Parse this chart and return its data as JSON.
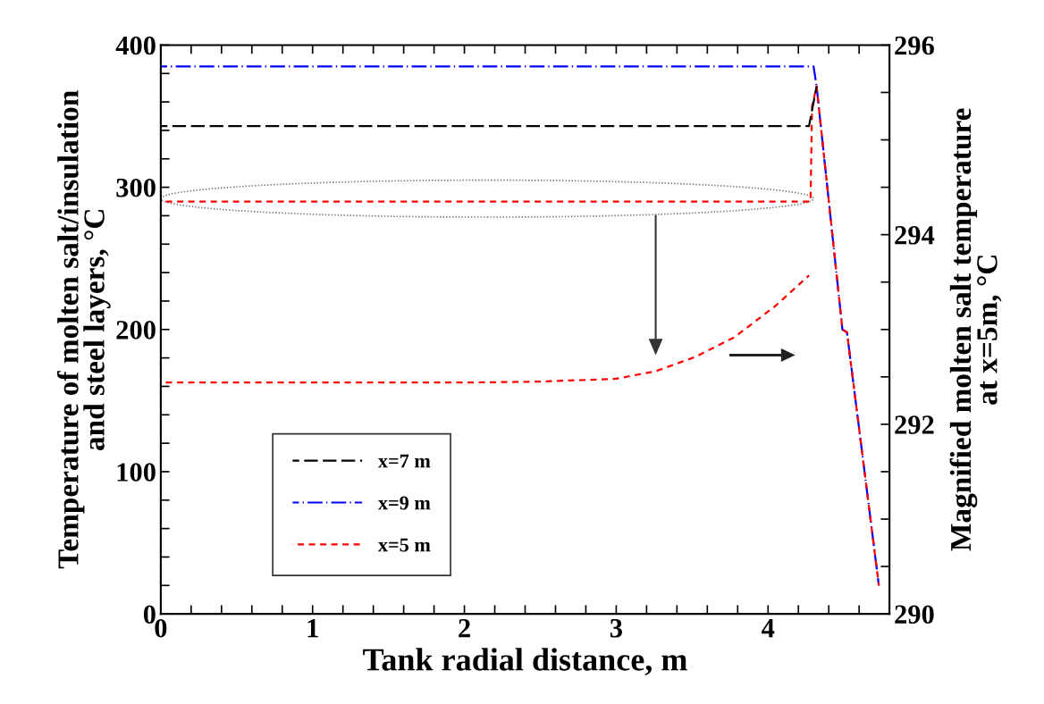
{
  "chart_data": {
    "type": "line",
    "xlabel": "Tank radial distance, m",
    "ylabel": "Temperature of molten salt/insulation\nand steel layers, °C",
    "y2label": "Magnified molten salt temperature\nat x=5m, °C",
    "xlim": [
      0,
      4.8
    ],
    "ylim": [
      0,
      400
    ],
    "y2lim": [
      290,
      296
    ],
    "xticks": [
      0,
      {
        "value": 0.2,
        "label": null
      },
      {
        "value": 0.4,
        "label": null
      },
      {
        "value": 0.6,
        "label": null
      },
      {
        "value": 0.8,
        "label": null
      },
      1,
      {
        "value": 1.2,
        "label": null
      },
      {
        "value": 1.4,
        "label": null
      },
      {
        "value": 1.6,
        "label": null
      },
      {
        "value": 1.8,
        "label": null
      },
      2,
      {
        "value": 2.2,
        "label": null
      },
      {
        "value": 2.4,
        "label": null
      },
      {
        "value": 2.6,
        "label": null
      },
      {
        "value": 2.8,
        "label": null
      },
      3,
      {
        "value": 3.2,
        "label": null
      },
      {
        "value": 3.4,
        "label": null
      },
      {
        "value": 3.6,
        "label": null
      },
      {
        "value": 3.8,
        "label": null
      },
      4,
      {
        "value": 4.2,
        "label": null
      },
      {
        "value": 4.4,
        "label": null
      },
      {
        "value": 4.6,
        "label": null
      }
    ],
    "yticks": [
      0,
      {
        "value": 20,
        "label": null
      },
      {
        "value": 40,
        "label": null
      },
      {
        "value": 60,
        "label": null
      },
      {
        "value": 80,
        "label": null
      },
      100,
      {
        "value": 120,
        "label": null
      },
      {
        "value": 140,
        "label": null
      },
      {
        "value": 160,
        "label": null
      },
      {
        "value": 180,
        "label": null
      },
      200,
      {
        "value": 220,
        "label": null
      },
      {
        "value": 240,
        "label": null
      },
      {
        "value": 260,
        "label": null
      },
      {
        "value": 280,
        "label": null
      },
      300,
      {
        "value": 320,
        "label": null
      },
      {
        "value": 340,
        "label": null
      },
      {
        "value": 360,
        "label": null
      },
      {
        "value": 380,
        "label": null
      },
      400
    ],
    "y2ticks": [
      290,
      {
        "value": 290.5,
        "label": null
      },
      {
        "value": 291,
        "label": null
      },
      {
        "value": 291.5,
        "label": null
      },
      292,
      {
        "value": 292.5,
        "label": null
      },
      {
        "value": 293,
        "label": null
      },
      {
        "value": 293.5,
        "label": null
      },
      294,
      {
        "value": 294.5,
        "label": null
      },
      {
        "value": 295,
        "label": null
      },
      {
        "value": 295.5,
        "label": null
      },
      296
    ],
    "legend": "bottom left",
    "grid": false,
    "marker": "none",
    "series": [
      {
        "name": "x=7 m",
        "color": "#000000",
        "line_style": "dashed",
        "x": [
          0,
          4.27,
          4.32
        ],
        "values": [
          343,
          343,
          371
        ]
      },
      {
        "name": "x=9 m",
        "color": "#0000ff",
        "line_style": "dashed",
        "x": [
          0,
          4.3,
          4.32,
          4.49,
          4.52,
          4.73
        ],
        "values": [
          385,
          385,
          371,
          200,
          198,
          20
        ]
      },
      {
        "name": "x=5 m",
        "color": "#ff0000",
        "line_style": "dashed",
        "x": [
          0,
          4.28,
          4.29,
          4.32,
          4.49,
          4.52,
          4.73
        ],
        "values": [
          290,
          290,
          357,
          371,
          200,
          198,
          20
        ]
      },
      {
        "color": "#ff0000",
        "line_style": "dashed",
        "axis": "y2",
        "x": [
          0,
          2.0,
          2.5,
          3.0,
          3.26,
          3.52,
          3.78,
          4.05,
          4.27
        ],
        "values": [
          292.44,
          292.44,
          292.45,
          292.48,
          292.56,
          292.71,
          292.92,
          293.25,
          293.57
        ]
      }
    ]
  }
}
